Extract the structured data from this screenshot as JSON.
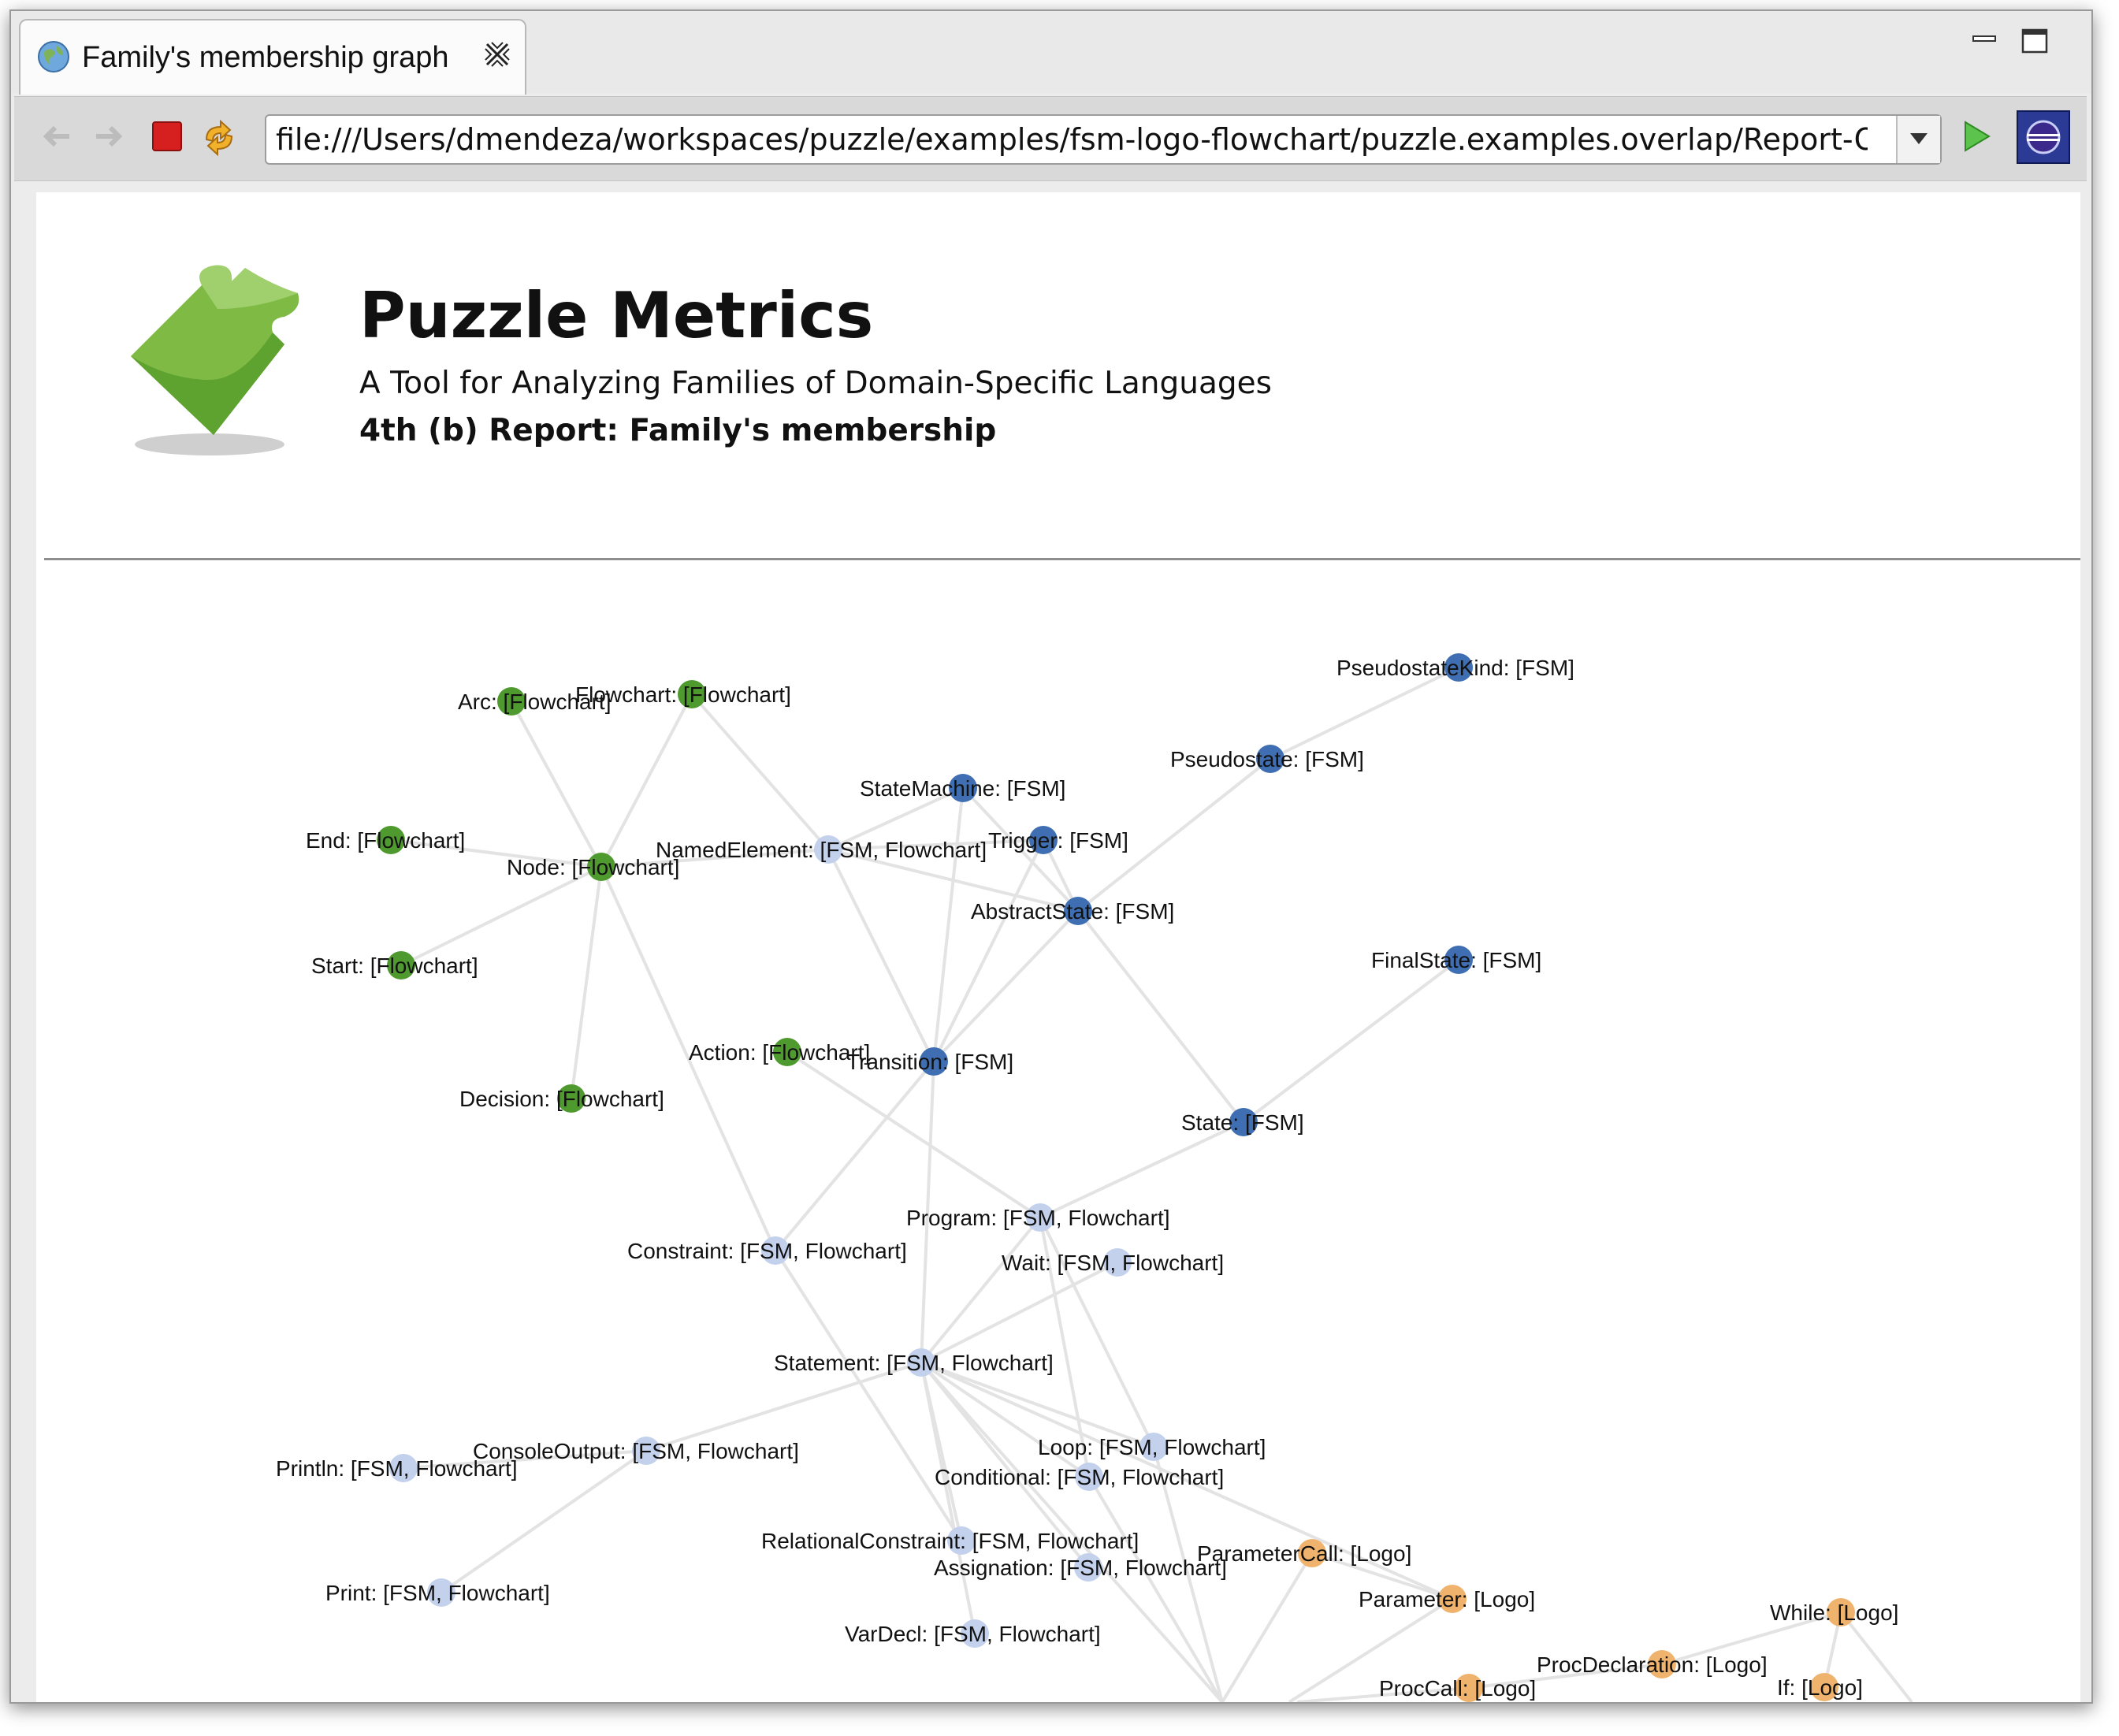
{
  "window": {
    "tab_title": "Family's membership graph",
    "url": "file:///Users/dmendeza/workspaces/puzzle/examples/fsm-logo-flowchart/puzzle.examples.overlap/Report-Over",
    "icons": [
      "globe-icon",
      "close-icon",
      "minimize-icon",
      "maximize-icon",
      "back-arrow-icon",
      "forward-arrow-icon",
      "stop-icon",
      "refresh-icon",
      "dropdown-icon",
      "go-icon",
      "eclipse-icon"
    ]
  },
  "header": {
    "title": "Puzzle Metrics",
    "subtitle": "A Tool for Analyzing Families of Domain-Specific Languages",
    "report": "4th (b) Report: Family's membership"
  },
  "graph": {
    "colors": {
      "Flowchart": "#4f9a2e",
      "FSM": "#3f6fb2",
      "shared": "#c3d1ec",
      "Logo": "#f0b36e",
      "edge": "#e3e3e3"
    },
    "nodes": [
      {
        "id": "pseudostatekind",
        "label": "PseudostateKind: [FSM]",
        "group": "FSM"
      },
      {
        "id": "pseudostate",
        "label": "Pseudostate: [FSM]",
        "group": "FSM"
      },
      {
        "id": "arc",
        "label": "Arc: [Flowchart]",
        "group": "Flowchart"
      },
      {
        "id": "flowchart",
        "label": "Flowchart: [Flowchart]",
        "group": "Flowchart"
      },
      {
        "id": "statemachine",
        "label": "StateMachine: [FSM]",
        "group": "FSM"
      },
      {
        "id": "trigger",
        "label": "Trigger: [FSM]",
        "group": "FSM"
      },
      {
        "id": "end",
        "label": "End: [Flowchart]",
        "group": "Flowchart"
      },
      {
        "id": "node",
        "label": "Node: [Flowchart]",
        "group": "Flowchart"
      },
      {
        "id": "namedelement",
        "label": "NamedElement: [FSM, Flowchart]",
        "group": "shared"
      },
      {
        "id": "abstractstate",
        "label": "AbstractState: [FSM]",
        "group": "FSM"
      },
      {
        "id": "start",
        "label": "Start: [Flowchart]",
        "group": "Flowchart"
      },
      {
        "id": "finalstate",
        "label": "FinalState: [FSM]",
        "group": "FSM"
      },
      {
        "id": "action",
        "label": "Action: [Flowchart]",
        "group": "Flowchart"
      },
      {
        "id": "transition",
        "label": "Transition: [FSM]",
        "group": "FSM"
      },
      {
        "id": "state",
        "label": "State: [FSM]",
        "group": "FSM"
      },
      {
        "id": "decision",
        "label": "Decision: [Flowchart]",
        "group": "Flowchart"
      },
      {
        "id": "program",
        "label": "Program: [FSM, Flowchart]",
        "group": "shared"
      },
      {
        "id": "constraint",
        "label": "Constraint: [FSM, Flowchart]",
        "group": "shared"
      },
      {
        "id": "wait",
        "label": "Wait: [FSM, Flowchart]",
        "group": "shared"
      },
      {
        "id": "statement",
        "label": "Statement: [FSM, Flowchart]",
        "group": "shared"
      },
      {
        "id": "consoleoutput",
        "label": "ConsoleOutput: [FSM, Flowchart]",
        "group": "shared"
      },
      {
        "id": "println",
        "label": "Println: [FSM, Flowchart]",
        "group": "shared"
      },
      {
        "id": "loop",
        "label": "Loop: [FSM, Flowchart]",
        "group": "shared"
      },
      {
        "id": "conditional",
        "label": "Conditional: [FSM, Flowchart]",
        "group": "shared"
      },
      {
        "id": "relationalconstraint",
        "label": "RelationalConstraint: [FSM, Flowchart]",
        "group": "shared"
      },
      {
        "id": "parametercall",
        "label": "ParameterCall: [Logo]",
        "group": "Logo"
      },
      {
        "id": "assignation",
        "label": "Assignation: [FSM, Flowchart]",
        "group": "shared"
      },
      {
        "id": "print",
        "label": "Print: [FSM, Flowchart]",
        "group": "shared"
      },
      {
        "id": "parameter",
        "label": "Parameter: [Logo]",
        "group": "Logo"
      },
      {
        "id": "while",
        "label": "While: [Logo]",
        "group": "Logo"
      },
      {
        "id": "vardecl",
        "label": "VarDecl: [FSM, Flowchart]",
        "group": "shared"
      },
      {
        "id": "procdeclaration",
        "label": "ProcDeclaration: [Logo]",
        "group": "Logo"
      },
      {
        "id": "proccall",
        "label": "ProcCall: [Logo]",
        "group": "Logo"
      },
      {
        "id": "if",
        "label": "If: [Logo]",
        "group": "Logo"
      }
    ],
    "edges": [
      [
        "arc",
        "node"
      ],
      [
        "flowchart",
        "node"
      ],
      [
        "end",
        "node"
      ],
      [
        "start",
        "node"
      ],
      [
        "decision",
        "node"
      ],
      [
        "node",
        "namedelement"
      ],
      [
        "flowchart",
        "namedelement"
      ],
      [
        "statemachine",
        "namedelement"
      ],
      [
        "trigger",
        "namedelement"
      ],
      [
        "namedelement",
        "abstractstate"
      ],
      [
        "statemachine",
        "abstractstate"
      ],
      [
        "trigger",
        "abstractstate"
      ],
      [
        "pseudostatekind",
        "pseudostate"
      ],
      [
        "pseudostate",
        "abstractstate"
      ],
      [
        "finalstate",
        "state"
      ],
      [
        "state",
        "abstractstate"
      ],
      [
        "transition",
        "abstractstate"
      ],
      [
        "transition",
        "trigger"
      ],
      [
        "transition",
        "statemachine"
      ],
      [
        "transition",
        "namedelement"
      ],
      [
        "node",
        "constraint"
      ],
      [
        "action",
        "program"
      ],
      [
        "state",
        "program"
      ],
      [
        "transition",
        "constraint"
      ],
      [
        "transition",
        "statement"
      ],
      [
        "program",
        "statement"
      ],
      [
        "wait",
        "statement"
      ],
      [
        "program",
        "loop"
      ],
      [
        "program",
        "conditional"
      ],
      [
        "statement",
        "consoleoutput"
      ],
      [
        "consoleoutput",
        "println"
      ],
      [
        "consoleoutput",
        "print"
      ],
      [
        "statement",
        "loop"
      ],
      [
        "statement",
        "conditional"
      ],
      [
        "statement",
        "relationalconstraint"
      ],
      [
        "statement",
        "assignation"
      ],
      [
        "statement",
        "vardecl"
      ],
      [
        "constraint",
        "relationalconstraint"
      ],
      [
        "statement",
        "parameter"
      ],
      [
        "parametercall",
        "parameter"
      ],
      [
        "procdeclaration",
        "proccall"
      ],
      [
        "procdeclaration",
        "while"
      ],
      [
        "while",
        "if"
      ]
    ]
  }
}
